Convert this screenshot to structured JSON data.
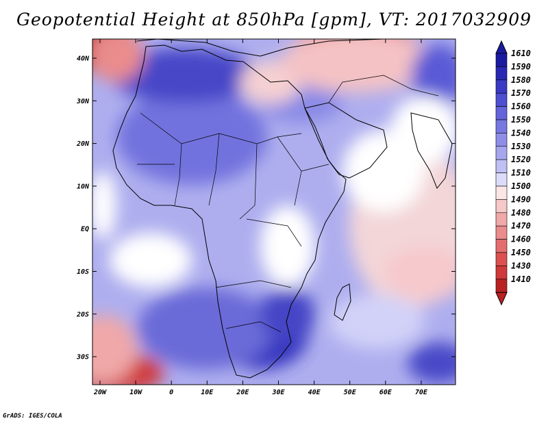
{
  "title": "Geopotential Height at 850hPa [gpm], VT: 2017032909",
  "footer": "GrADS: IGES/COLA",
  "map": {
    "variable": "Geopotential Height",
    "level": "850hPa",
    "units": "gpm",
    "valid_time": "2017032909",
    "lat_labels": [
      "40N",
      "30N",
      "20N",
      "10N",
      "EQ",
      "10S",
      "20S",
      "30S"
    ],
    "lon_labels": [
      "20W",
      "10W",
      "0",
      "10E",
      "20E",
      "30E",
      "40E",
      "50E",
      "60E",
      "70E"
    ]
  },
  "colorbar": {
    "levels": [
      "1610",
      "1590",
      "1580",
      "1570",
      "1560",
      "1550",
      "1540",
      "1530",
      "1520",
      "1510",
      "1500",
      "1490",
      "1480",
      "1470",
      "1460",
      "1450",
      "1430",
      "1410"
    ],
    "colors": [
      "#1a1aa0",
      "#2828b4",
      "#3a3ac4",
      "#4f4fd2",
      "#6464dc",
      "#7878e2",
      "#8e8ee8",
      "#a6a6ee",
      "#c0c0f4",
      "#dcdcfa",
      "#fbe6e6",
      "#f6c8c8",
      "#f0a8a8",
      "#ea8c8c",
      "#e46e6e",
      "#dc5050",
      "#d03a3a",
      "#b82222"
    ],
    "top_cap_color": "#1a1aa0",
    "bottom_cap_color": "#b82222"
  }
}
